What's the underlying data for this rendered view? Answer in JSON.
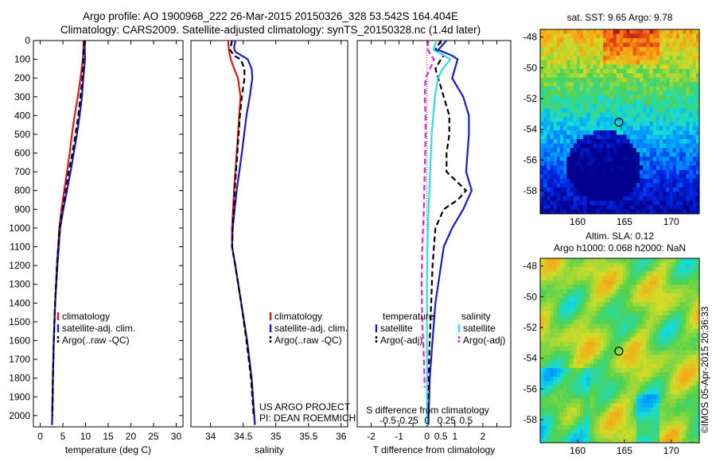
{
  "header": {
    "line1": "Argo profile: AO 1900968_222 26-Mar-2015 20150326_328 53.542S 164.404E",
    "line2": "Climatology: CARS2009. Satellite-adjusted climatology: synTS_20150328.nc (1.4d later)"
  },
  "credit": {
    "line1": "US ARGO PROJECT",
    "line2": "PI: DEAN ROEMMICH"
  },
  "watermark": "©IMOS 05-Apr-2015 20:36:33",
  "colors": {
    "climatology": "#e8141c",
    "satellite": "#1a1acc",
    "argo": "#000000",
    "sal_satellite": "#33dde6",
    "sal_argo": "#e61ee6"
  },
  "chart_data": [
    {
      "id": "temperature",
      "type": "line",
      "xlabel": "temperature (deg C)",
      "ylabel": "",
      "xlim": [
        -1.5,
        31.5
      ],
      "ylim": [
        2060,
        0
      ],
      "x_ticks": [
        0,
        5,
        10,
        15,
        20,
        25,
        30
      ],
      "y_ticks": [
        0,
        100,
        200,
        300,
        400,
        500,
        600,
        700,
        800,
        900,
        1000,
        1100,
        1200,
        1300,
        1400,
        1500,
        1600,
        1700,
        1800,
        1900,
        2000
      ],
      "legend": [
        "climatology",
        "satellite-adj. clim.",
        "Argo(..raw -QC)"
      ],
      "legend_position": "bottom-center",
      "series": [
        {
          "name": "climatology",
          "style": "solid",
          "depth": [
            0,
            100,
            200,
            300,
            400,
            500,
            600,
            700,
            800,
            900,
            1000,
            1200,
            1400,
            1600,
            1800,
            2050
          ],
          "values": [
            9.6,
            9.4,
            8.9,
            8.3,
            7.6,
            7.0,
            6.5,
            5.9,
            5.3,
            4.7,
            4.2,
            3.7,
            3.3,
            3.0,
            2.8,
            2.6
          ]
        },
        {
          "name": "satellite-adj. clim.",
          "style": "solid",
          "depth": [
            0,
            100,
            200,
            300,
            400,
            500,
            600,
            700,
            800,
            900,
            1000,
            1200,
            1400,
            1600,
            1800,
            2050
          ],
          "values": [
            9.8,
            9.9,
            9.5,
            9.2,
            8.7,
            8.1,
            7.4,
            6.7,
            5.9,
            5.1,
            4.4,
            3.8,
            3.3,
            3.0,
            2.8,
            2.6
          ]
        },
        {
          "name": "Argo(..raw -QC)",
          "style": "dashed",
          "depth": [
            0,
            100,
            200,
            300,
            400,
            500,
            600,
            700,
            800,
            900,
            1000,
            1200,
            1400,
            1600,
            1800,
            2000
          ],
          "values": [
            9.7,
            9.5,
            9.3,
            8.9,
            8.4,
            7.8,
            7.1,
            6.3,
            5.6,
            4.9,
            4.3,
            3.7,
            3.3,
            3.0,
            2.8,
            2.7
          ]
        }
      ]
    },
    {
      "id": "salinity",
      "type": "line",
      "xlabel": "salinity",
      "ylabel": "",
      "xlim": [
        33.7,
        36.1
      ],
      "ylim": [
        2060,
        0
      ],
      "x_ticks": [
        34,
        34.5,
        35,
        35.5,
        36
      ],
      "legend": [
        "climatology",
        "satellite-adj. clim.",
        "Argo(..raw -QC)"
      ],
      "legend_position": "bottom-center",
      "series": [
        {
          "name": "climatology",
          "style": "solid",
          "depth": [
            0,
            50,
            100,
            150,
            200,
            300,
            400,
            600,
            800,
            1000,
            1100,
            1200,
            1400,
            1600,
            1800,
            2050
          ],
          "values": [
            34.27,
            34.28,
            34.31,
            34.36,
            34.42,
            34.46,
            34.44,
            34.4,
            34.36,
            34.33,
            34.33,
            34.38,
            34.47,
            34.56,
            34.63,
            34.68
          ]
        },
        {
          "name": "satellite-adj. clim.",
          "style": "solid",
          "depth": [
            0,
            40,
            60,
            100,
            150,
            200,
            300,
            400,
            600,
            800,
            1000,
            1100,
            1200,
            1400,
            1600,
            1800,
            2050
          ],
          "values": [
            34.38,
            34.36,
            34.38,
            34.57,
            34.63,
            34.64,
            34.6,
            34.55,
            34.48,
            34.4,
            34.34,
            34.33,
            34.38,
            34.47,
            34.56,
            34.63,
            34.68
          ]
        },
        {
          "name": "Argo(..raw -QC)",
          "style": "dashed",
          "depth": [
            0,
            50,
            80,
            100,
            150,
            200,
            300,
            400,
            600,
            800,
            1000,
            1100,
            1200,
            1400,
            1600,
            1800,
            2000
          ],
          "values": [
            34.33,
            34.3,
            34.36,
            34.46,
            34.52,
            34.52,
            34.48,
            34.45,
            34.41,
            34.37,
            34.34,
            34.33,
            34.38,
            34.47,
            34.55,
            34.62,
            34.66
          ]
        }
      ]
    },
    {
      "id": "difference",
      "type": "line",
      "xlabel": "T difference from climatology",
      "x2label": "S difference from climatology",
      "xlim": [
        -2.5,
        3
      ],
      "ylim": [
        2060,
        0
      ],
      "x_ticks": [
        -2,
        -1.5,
        -1,
        -0.5,
        0,
        0.5,
        1,
        1.5,
        2,
        2.5
      ],
      "x_tick_labels": [
        "-2",
        "",
        "-1",
        "",
        "0",
        "0.5",
        "1",
        "",
        "2",
        ""
      ],
      "x2_tick_labels": [
        "-0.5",
        "-0.25",
        "0",
        "0.25",
        "0.5"
      ],
      "x2_ticks": [
        -0.5,
        -0.25,
        0,
        0.25,
        0.5
      ],
      "legend_headers": [
        "temperature",
        "salinity"
      ],
      "legend": [
        "satellite",
        "Argo(-adj)",
        "satellite",
        "Argo(-adj)"
      ],
      "legend_position": "bottom-center",
      "series": [
        {
          "name": "temperature satellite",
          "style": "solid",
          "depth": [
            0,
            50,
            80,
            100,
            150,
            200,
            300,
            400,
            500,
            600,
            700,
            800,
            900,
            1000,
            1100,
            1200,
            1400,
            1600,
            1800,
            2050
          ],
          "values": [
            0.7,
            0.4,
            0.9,
            1.1,
            1.0,
            0.9,
            1.3,
            1.5,
            1.5,
            1.45,
            1.4,
            1.6,
            1.3,
            0.9,
            0.6,
            0.5,
            0.3,
            0.2,
            0.1,
            0.05
          ]
        },
        {
          "name": "temperature Argo(-adj)",
          "style": "dashed",
          "depth": [
            0,
            50,
            80,
            100,
            150,
            200,
            300,
            400,
            500,
            600,
            700,
            800,
            850,
            900,
            1000,
            1100,
            1200,
            1400,
            1600,
            1800,
            2000
          ],
          "values": [
            0.5,
            0.3,
            0.6,
            0.5,
            0.3,
            0.4,
            0.6,
            0.8,
            0.8,
            0.7,
            0.7,
            1.4,
            1.1,
            0.6,
            0.3,
            0.25,
            0.2,
            0.15,
            0.1,
            0.05,
            0.03
          ]
        },
        {
          "name": "salinity satellite",
          "style": "solid",
          "depth": [
            0,
            50,
            80,
            100,
            150,
            200,
            300,
            400,
            500,
            700,
            900,
            1100,
            1300,
            1500,
            1800,
            2050
          ],
          "values": [
            0.12,
            0.08,
            0.22,
            0.3,
            0.2,
            0.14,
            0.1,
            0.08,
            0.06,
            0.04,
            0.02,
            0.005,
            0,
            0,
            0,
            0
          ]
        },
        {
          "name": "salinity Argo(-adj)",
          "style": "dashed",
          "depth": [
            0,
            40,
            80,
            100,
            150,
            200,
            300,
            400,
            500,
            700,
            900,
            1100,
            1300,
            1500,
            1700,
            1850
          ],
          "values": [
            0.02,
            0.0,
            0.05,
            0.09,
            0.04,
            -0.02,
            -0.03,
            -0.02,
            -0.02,
            -0.03,
            -0.04,
            -0.06,
            -0.07,
            -0.06,
            -0.04,
            -0.03
          ]
        }
      ]
    },
    {
      "id": "sst_map",
      "type": "heatmap",
      "title": "sat. SST: 9.65 Argo: 9.78",
      "xlim": [
        156,
        173
      ],
      "ylim": [
        -59.5,
        -47.5
      ],
      "x_ticks": [
        160,
        165,
        170
      ],
      "y_ticks": [
        -48,
        -50,
        -52,
        -54,
        -56,
        -58
      ],
      "marker": {
        "lon": 164.404,
        "lat": -53.542
      }
    },
    {
      "id": "sla_map",
      "type": "heatmap",
      "title": "Altim. SLA: 0.12",
      "subtitle": "Argo h1000: 0.068 h2000: NaN",
      "xlim": [
        156,
        173
      ],
      "ylim": [
        -59.5,
        -47.5
      ],
      "x_ticks": [
        160,
        165,
        170
      ],
      "y_ticks": [
        -48,
        -50,
        -52,
        -54,
        -56,
        -58
      ],
      "marker": {
        "lon": 164.404,
        "lat": -53.542
      }
    }
  ]
}
